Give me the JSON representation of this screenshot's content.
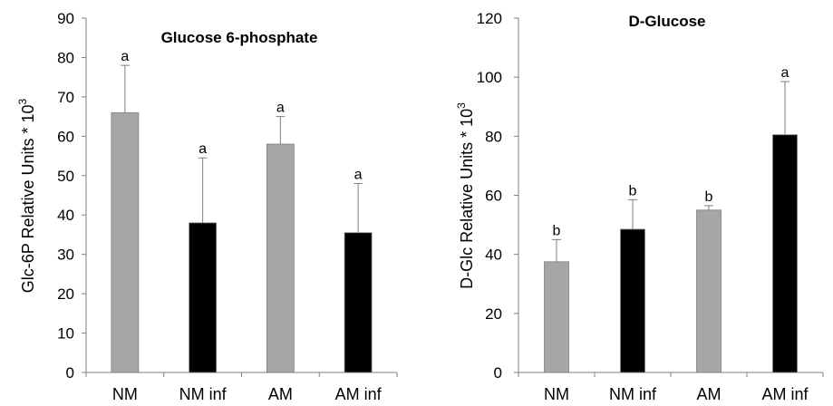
{
  "chart_data": [
    {
      "type": "bar",
      "title": "Glucose 6-phosphate",
      "ylabel_main": "Glc-6P Relative Units * 10",
      "ylabel_sup": "3",
      "xlabel": "",
      "categories": [
        "NM",
        "NM inf",
        "AM",
        "AM inf"
      ],
      "values": [
        66,
        38,
        58,
        35.5
      ],
      "errors": [
        12,
        16.5,
        7,
        12.5
      ],
      "significance": [
        "a",
        "a",
        "a",
        "a"
      ],
      "bar_colors": [
        "#a6a6a6",
        "#000000",
        "#a6a6a6",
        "#000000"
      ],
      "ylim": [
        0,
        90
      ],
      "yticks": [
        0,
        10,
        20,
        30,
        40,
        50,
        60,
        70,
        80,
        90
      ],
      "grid": false,
      "legend": "none"
    },
    {
      "type": "bar",
      "title": "D-Glucose",
      "ylabel_main": "D-Glc Relative Units * 10",
      "ylabel_sup": "3",
      "xlabel": "",
      "categories": [
        "NM",
        "NM inf",
        "AM",
        "AM inf"
      ],
      "values": [
        37.5,
        48.5,
        55,
        80.5
      ],
      "errors": [
        7.5,
        10,
        1.5,
        18
      ],
      "significance": [
        "b",
        "b",
        "b",
        "a"
      ],
      "bar_colors": [
        "#a6a6a6",
        "#000000",
        "#a6a6a6",
        "#000000"
      ],
      "ylim": [
        0,
        120
      ],
      "yticks": [
        0,
        20,
        40,
        60,
        80,
        100,
        120
      ],
      "grid": false,
      "legend": "none"
    }
  ]
}
